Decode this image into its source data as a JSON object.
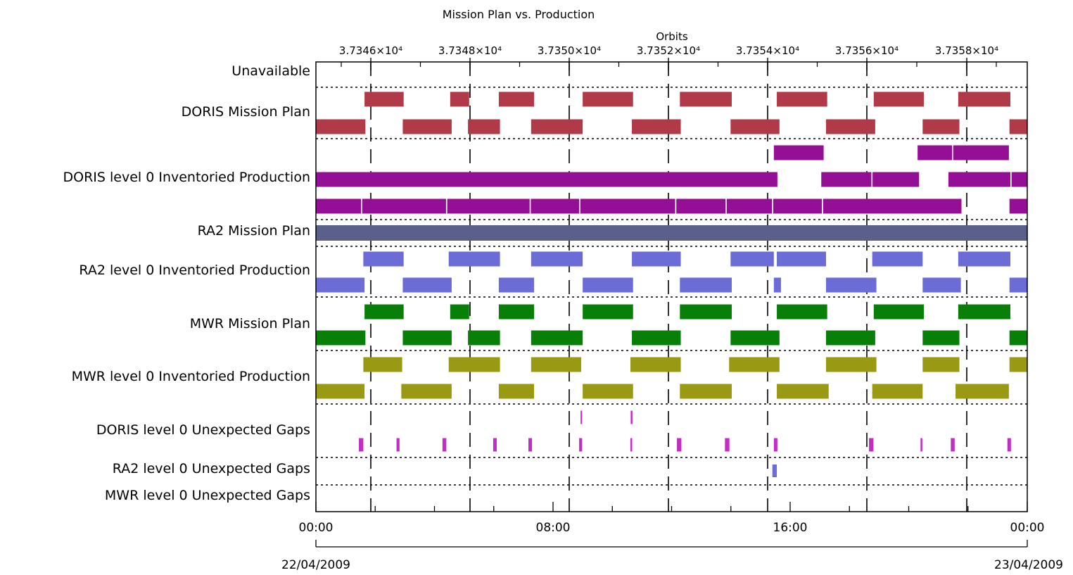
{
  "chart_data": {
    "type": "timeline",
    "title": "Mission Plan vs. Production",
    "orbit_axis_label": "Orbits",
    "orbit_ticks": [
      "3.7346×10⁴",
      "3.7348×10⁴",
      "3.7350×10⁴",
      "3.7352×10⁴",
      "3.7354×10⁴",
      "3.7356×10⁴",
      "3.7358×10⁴"
    ],
    "time_ticks": [
      "00:00",
      "08:00",
      "16:00",
      "00:00"
    ],
    "dates": [
      "22/04/2009",
      "23/04/2009"
    ],
    "x_range_hours": [
      0,
      24
    ],
    "row_labels": [
      "Unavailable",
      "DORIS Mission Plan",
      "DORIS level 0 Inventoried Production",
      "RA2 Mission Plan",
      "RA2 level 0 Inventoried Production",
      "MWR Mission Plan",
      "MWR level 0 Inventoried Production",
      "DORIS level 0 Unexpected Gaps",
      "RA2 level 0 Unexpected Gaps",
      "MWR level 0 Unexpected Gaps"
    ],
    "colors": {
      "doris_plan": "#b03a48",
      "doris_prod": "#950f96",
      "ra2_plan": "#5a6089",
      "ra2_prod": "#6b6cd6",
      "mwr_plan": "#088008",
      "mwr_prod": "#999912",
      "doris_gap": "#c42cc6",
      "ra2_gap": "#6b6cd6"
    },
    "series": [
      {
        "name": "DORIS Mission Plan",
        "color_key": "doris_plan",
        "lanes": [
          [
            [
              1.64,
              2.96
            ],
            [
              4.53,
              5.17
            ],
            [
              6.17,
              7.36
            ],
            [
              9.0,
              10.7
            ],
            [
              12.28,
              14.03
            ],
            [
              15.55,
              17.25
            ],
            [
              18.82,
              20.51
            ],
            [
              21.67,
              23.43
            ]
          ],
          [
            [
              0.0,
              1.67
            ],
            [
              2.93,
              4.58
            ],
            [
              5.13,
              6.21
            ],
            [
              7.26,
              9.0
            ],
            [
              10.66,
              12.31
            ],
            [
              13.99,
              15.64
            ],
            [
              17.21,
              18.87
            ],
            [
              20.47,
              21.71
            ],
            [
              23.4,
              24.0
            ]
          ]
        ]
      },
      {
        "name": "DORIS level 0 Inventoried Production",
        "color_key": "doris_prod",
        "lanes": [
          [
            [
              15.45,
              17.13
            ],
            [
              20.3,
              21.46
            ],
            [
              21.5,
              23.38
            ]
          ],
          [
            [
              0.0,
              15.57
            ],
            [
              17.05,
              18.74
            ],
            [
              18.78,
              20.35
            ],
            [
              21.34,
              23.43
            ],
            [
              23.47,
              24.0
            ]
          ],
          [
            [
              0.0,
              1.52
            ],
            [
              1.56,
              4.39
            ],
            [
              4.43,
              7.21
            ],
            [
              7.25,
              8.88
            ],
            [
              8.92,
              12.12
            ],
            [
              12.16,
              13.82
            ],
            [
              13.86,
              15.39
            ],
            [
              15.43,
              17.07
            ],
            [
              17.11,
              21.78
            ],
            [
              23.4,
              24.0
            ]
          ]
        ]
      },
      {
        "name": "RA2 Mission Plan",
        "color_key": "ra2_plan",
        "lanes": [
          [
            [
              0.0,
              24.0
            ]
          ]
        ]
      },
      {
        "name": "RA2 level 0 Inventoried Production",
        "color_key": "ra2_prod",
        "lanes": [
          [
            [
              1.6,
              2.96
            ],
            [
              4.48,
              6.21
            ],
            [
              7.26,
              9.0
            ],
            [
              10.66,
              12.31
            ],
            [
              13.99,
              15.45
            ],
            [
              15.55,
              17.21
            ],
            [
              18.77,
              20.47
            ],
            [
              21.67,
              23.43
            ]
          ],
          [
            [
              0.0,
              1.64
            ],
            [
              2.93,
              4.58
            ],
            [
              6.17,
              7.36
            ],
            [
              9.0,
              10.7
            ],
            [
              12.28,
              14.03
            ],
            [
              15.45,
              15.69
            ],
            [
              17.21,
              18.91
            ],
            [
              20.47,
              21.76
            ],
            [
              23.4,
              24.0
            ]
          ]
        ]
      },
      {
        "name": "MWR Mission Plan",
        "color_key": "mwr_plan",
        "lanes": [
          [
            [
              1.64,
              2.96
            ],
            [
              4.53,
              5.17
            ],
            [
              6.17,
              7.36
            ],
            [
              9.0,
              10.7
            ],
            [
              12.28,
              14.03
            ],
            [
              15.55,
              17.25
            ],
            [
              18.82,
              20.51
            ],
            [
              21.67,
              23.43
            ]
          ],
          [
            [
              0.0,
              1.67
            ],
            [
              2.93,
              4.58
            ],
            [
              5.13,
              6.21
            ],
            [
              7.26,
              9.0
            ],
            [
              10.66,
              12.31
            ],
            [
              13.99,
              15.64
            ],
            [
              17.21,
              18.87
            ],
            [
              20.47,
              21.71
            ],
            [
              23.4,
              24.0
            ]
          ]
        ]
      },
      {
        "name": "MWR level 0 Inventoried Production",
        "color_key": "mwr_prod",
        "lanes": [
          [
            [
              1.6,
              2.91
            ],
            [
              4.48,
              6.21
            ],
            [
              7.26,
              8.95
            ],
            [
              10.61,
              12.31
            ],
            [
              13.94,
              15.64
            ],
            [
              17.21,
              18.91
            ],
            [
              20.47,
              21.71
            ],
            [
              23.4,
              24.0
            ]
          ],
          [
            [
              0.0,
              1.64
            ],
            [
              2.88,
              4.58
            ],
            [
              6.17,
              7.36
            ],
            [
              9.0,
              10.7
            ],
            [
              12.28,
              14.03
            ],
            [
              15.55,
              17.3
            ],
            [
              18.77,
              20.47
            ],
            [
              21.58,
              23.38
            ]
          ]
        ]
      },
      {
        "name": "DORIS level 0 Unexpected Gaps",
        "color_key": "doris_gap",
        "lanes": [
          [
            [
              8.93,
              8.98
            ],
            [
              10.62,
              10.68
            ]
          ],
          [
            [
              1.45,
              1.6
            ],
            [
              2.72,
              2.82
            ],
            [
              4.27,
              4.4
            ],
            [
              5.98,
              6.1
            ],
            [
              7.17,
              7.29
            ],
            [
              8.88,
              8.98
            ],
            [
              10.61,
              10.67
            ],
            [
              12.18,
              12.33
            ],
            [
              13.8,
              13.95
            ],
            [
              15.45,
              15.57
            ],
            [
              18.66,
              18.81
            ],
            [
              20.4,
              20.46
            ],
            [
              21.42,
              21.55
            ],
            [
              23.33,
              23.45
            ]
          ]
        ]
      },
      {
        "name": "RA2 level 0 Unexpected Gaps",
        "color_key": "ra2_gap",
        "lanes": [
          [
            [
              15.4,
              15.55
            ]
          ]
        ]
      },
      {
        "name": "MWR level 0 Unexpected Gaps",
        "color_key": "doris_gap",
        "lanes": [
          []
        ]
      }
    ]
  }
}
